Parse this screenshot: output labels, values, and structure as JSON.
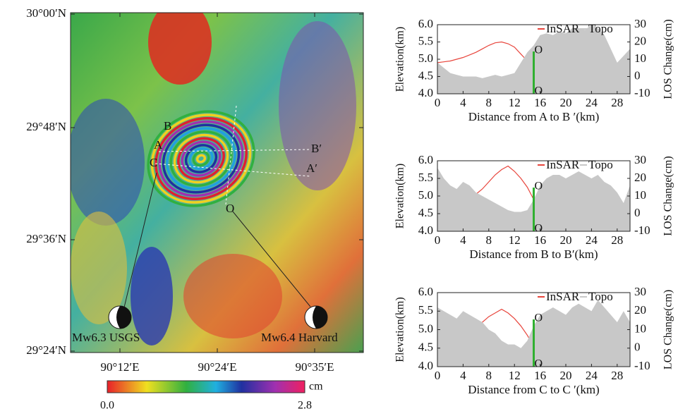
{
  "map": {
    "lat_labels": [
      "30°00′N",
      "29°48′N",
      "29°36′N",
      "29°24′N"
    ],
    "lon_labels": [
      "90°12′E",
      "90°24′E",
      "90°35′E"
    ],
    "point_labels": [
      "B",
      "A",
      "C",
      "B′",
      "A′",
      "O"
    ],
    "source_labels": [
      "Mw6.3  USGS",
      "Mw6.4 Harvard"
    ],
    "colorbar": {
      "unit": "cm",
      "ticks": [
        {
          "value": 0,
          "label": "0.0"
        },
        {
          "value": 2.8,
          "label": "2.8"
        }
      ]
    }
  },
  "chart_data": [
    {
      "type": "line",
      "xlabel": "Distance from A to B ′(km)",
      "ylabel": "Elevation(km)",
      "y2label": "LOS Change(cm)",
      "marker_label": "O",
      "marker_x": 15,
      "x": [
        0,
        1,
        2,
        3,
        4,
        5,
        6,
        7,
        8,
        9,
        10,
        11,
        12,
        13,
        14,
        15,
        16,
        17,
        18,
        19,
        20,
        21,
        22,
        23,
        24,
        25,
        26,
        27,
        28,
        29,
        30
      ],
      "xlim": [
        0,
        30
      ],
      "xticks": [
        0,
        4,
        8,
        12,
        16,
        20,
        24,
        28
      ],
      "ylim": [
        4,
        6
      ],
      "yticks": [
        {
          "value": 4,
          "label": "4.0"
        },
        {
          "value": 4.5,
          "label": "4.5"
        },
        {
          "value": 5,
          "label": "5.0"
        },
        {
          "value": 5.5,
          "label": "5.5"
        },
        {
          "value": 6,
          "label": "6.0"
        }
      ],
      "y2lim": [
        -10,
        30
      ],
      "y2ticks": [
        -10,
        0,
        10,
        20,
        30
      ],
      "series": [
        {
          "name": "InSAR",
          "color": "#e8453c",
          "axis": "y2",
          "values": [
            8,
            8.5,
            9,
            10,
            11,
            12.5,
            14,
            16,
            18,
            19.5,
            20,
            19,
            17,
            13,
            9,
            5,
            1,
            -1,
            -2,
            -2.5,
            -3,
            -3,
            -3,
            -3,
            -3,
            -3,
            -3.5,
            -3.5,
            -3,
            -3,
            -3
          ]
        },
        {
          "name": "Topo",
          "color": "#c8c8c8",
          "values": [
            4.9,
            4.75,
            4.6,
            4.55,
            4.5,
            4.5,
            4.5,
            4.45,
            4.5,
            4.55,
            4.5,
            4.55,
            4.6,
            4.9,
            5.2,
            5.4,
            5.7,
            5.75,
            5.7,
            5.8,
            5.75,
            5.9,
            5.9,
            5.85,
            6.0,
            5.9,
            5.7,
            5.3,
            4.9,
            5.1,
            5.3
          ]
        }
      ]
    },
    {
      "type": "line",
      "xlabel": "Distance from B to B′(km)",
      "ylabel": "Elevation(km)",
      "y2label": "LOS Change(cm)",
      "marker_label": "O",
      "marker_x": 15,
      "x": [
        0,
        1,
        2,
        3,
        4,
        5,
        6,
        7,
        8,
        9,
        10,
        11,
        12,
        13,
        14,
        15,
        16,
        17,
        18,
        19,
        20,
        21,
        22,
        23,
        24,
        25,
        26,
        27,
        28,
        29,
        30
      ],
      "xlim": [
        0,
        30
      ],
      "xticks": [
        0,
        4,
        8,
        12,
        16,
        20,
        24,
        28
      ],
      "ylim": [
        4,
        6
      ],
      "yticks": [
        {
          "value": 4,
          "label": "4.0"
        },
        {
          "value": 4.5,
          "label": "4.5"
        },
        {
          "value": 5,
          "label": "5.0"
        },
        {
          "value": 5.5,
          "label": "5.5"
        },
        {
          "value": 6,
          "label": "6.0"
        }
      ],
      "y2lim": [
        -10,
        30
      ],
      "y2ticks": [
        -10,
        0,
        10,
        20,
        30
      ],
      "series": [
        {
          "name": "InSAR",
          "color": "#e8453c",
          "axis": "y2",
          "values": [
            4,
            4,
            6,
            7,
            8,
            9,
            11,
            14,
            18,
            22,
            25,
            27,
            24,
            20,
            15,
            8,
            2,
            -2,
            -4,
            -5,
            -6,
            -6,
            -6,
            -5,
            -6,
            -6,
            -6,
            -5,
            -5,
            -5,
            -5
          ]
        },
        {
          "name": "Topo",
          "color": "#c8c8c8",
          "values": [
            5.8,
            5.5,
            5.3,
            5.2,
            5.4,
            5.3,
            5.1,
            5.0,
            4.9,
            4.8,
            4.7,
            4.6,
            4.55,
            4.55,
            4.6,
            4.9,
            5.3,
            5.5,
            5.6,
            5.6,
            5.5,
            5.6,
            5.7,
            5.6,
            5.5,
            5.6,
            5.4,
            5.3,
            5.1,
            4.8,
            5.3
          ]
        }
      ]
    },
    {
      "type": "line",
      "xlabel": "Distance from C to C ′(km)",
      "ylabel": "Elevation(km)",
      "y2label": "LOS Change(cm)",
      "marker_label": "O",
      "marker_x": 15,
      "x": [
        0,
        1,
        2,
        3,
        4,
        5,
        6,
        7,
        8,
        9,
        10,
        11,
        12,
        13,
        14,
        15,
        16,
        17,
        18,
        19,
        20,
        21,
        22,
        23,
        24,
        25,
        26,
        27,
        28,
        29,
        30
      ],
      "xlim": [
        0,
        30
      ],
      "xticks": [
        0,
        4,
        8,
        12,
        16,
        20,
        24,
        28
      ],
      "ylim": [
        4,
        6
      ],
      "yticks": [
        {
          "value": 4,
          "label": "4.0"
        },
        {
          "value": 4.5,
          "label": "4.5"
        },
        {
          "value": 5,
          "label": "5.0"
        },
        {
          "value": 5.5,
          "label": "5.5"
        },
        {
          "value": 6,
          "label": "6.0"
        }
      ],
      "y2lim": [
        -10,
        30
      ],
      "y2ticks": [
        -10,
        0,
        10,
        20,
        30
      ],
      "series": [
        {
          "name": "InSAR",
          "color": "#e8453c",
          "axis": "y2",
          "values": [
            3,
            4,
            5,
            6,
            8,
            10,
            12,
            14,
            17,
            19,
            21,
            19,
            16,
            12,
            7,
            1,
            -5,
            -6,
            -6,
            -6,
            -6,
            -6,
            -6,
            -5,
            -5,
            -5,
            -5,
            -5,
            -5,
            -6,
            -6
          ]
        },
        {
          "name": "Topo",
          "color": "#c8c8c8",
          "values": [
            5.6,
            5.5,
            5.4,
            5.3,
            5.5,
            5.4,
            5.3,
            5.2,
            5.0,
            4.9,
            4.7,
            4.6,
            4.6,
            4.5,
            4.7,
            5.1,
            5.4,
            5.5,
            5.6,
            5.5,
            5.4,
            5.6,
            5.7,
            5.6,
            5.5,
            5.8,
            5.6,
            5.4,
            5.2,
            5.5,
            5.2
          ]
        }
      ]
    }
  ]
}
